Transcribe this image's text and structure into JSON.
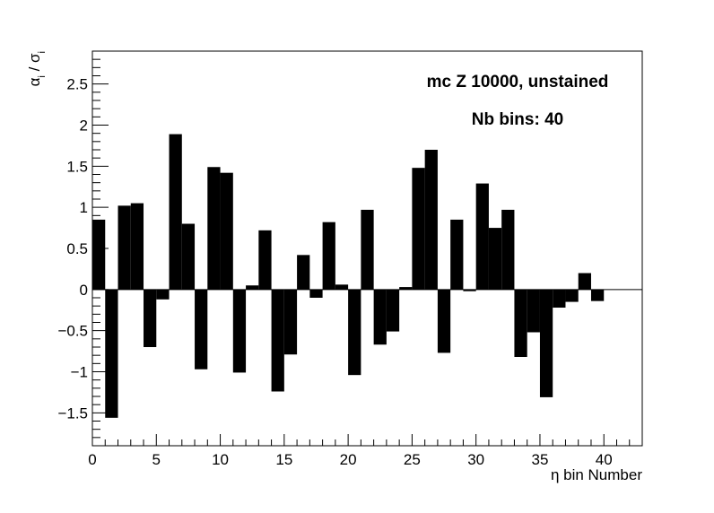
{
  "chart_data": {
    "type": "bar",
    "xlabel": "η bin Number",
    "ylabel": "α_i / σ_i",
    "xlim": [
      0,
      43
    ],
    "ylim": [
      -1.9,
      2.9
    ],
    "grid": false,
    "annotations": [
      "mc Z 10000, unstained",
      "Nb bins: 40"
    ],
    "x_ticks": [
      0,
      5,
      10,
      15,
      20,
      25,
      30,
      35,
      40
    ],
    "y_ticks": [
      -1.5,
      -1,
      -0.5,
      0,
      0.5,
      1,
      1.5,
      2,
      2.5
    ],
    "x_tick_labels": [
      "0",
      "5",
      "10",
      "15",
      "20",
      "25",
      "30",
      "35",
      "40"
    ],
    "y_tick_labels": [
      "−1.5",
      "−1",
      "−0.5",
      "0",
      "0.5",
      "1",
      "1.5",
      "2",
      "2.5"
    ],
    "bin_width": 1,
    "bins": [
      0,
      1,
      2,
      3,
      4,
      5,
      6,
      7,
      8,
      9,
      10,
      11,
      12,
      13,
      14,
      15,
      16,
      17,
      18,
      19,
      20,
      21,
      22,
      23,
      24,
      25,
      26,
      27,
      28,
      29,
      30,
      31,
      32,
      33,
      34,
      35,
      36,
      37,
      38,
      39
    ],
    "values": [
      0.85,
      -1.56,
      1.02,
      1.05,
      -0.7,
      -0.12,
      1.89,
      0.8,
      -0.97,
      1.49,
      1.42,
      -1.01,
      0.05,
      0.72,
      -1.24,
      -0.79,
      0.42,
      -0.1,
      0.82,
      0.06,
      -1.04,
      0.97,
      -0.67,
      -0.51,
      0.03,
      1.48,
      1.7,
      -0.77,
      0.85,
      -0.02,
      1.29,
      0.75,
      0.97,
      -0.82,
      -0.52,
      -1.31,
      -0.22,
      -0.15,
      0.2,
      -0.14
    ]
  }
}
